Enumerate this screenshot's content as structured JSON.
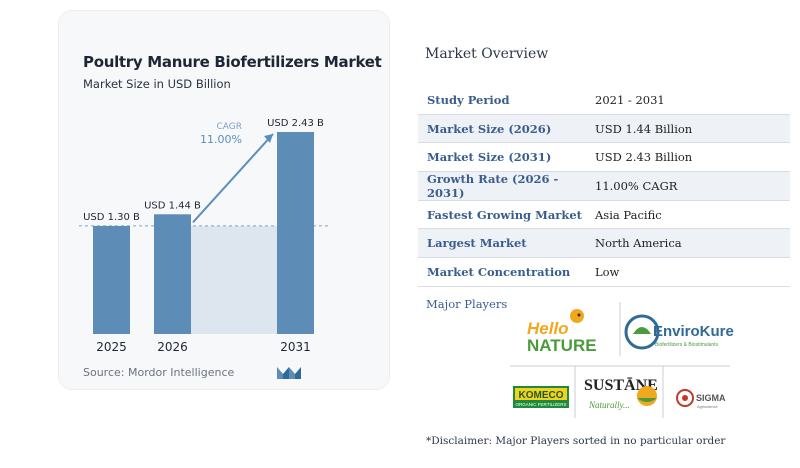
{
  "chart": {
    "title": "Poultry Manure Biofertilizers Market",
    "subtitle": "Market Size in USD Billion",
    "source": "Source: Mordor Intelligence",
    "cagr_label": "CAGR",
    "cagr_value": "11.00%"
  },
  "chart_data": {
    "type": "bar",
    "title": "Poultry Manure Biofertilizers Market",
    "subtitle": "Market Size in USD Billion",
    "categories": [
      "2025",
      "2026",
      "2031"
    ],
    "values": [
      1.3,
      1.44,
      2.43
    ],
    "data_labels": [
      "USD 1.30 B",
      "USD 1.44 B",
      "USD 2.43 B"
    ],
    "ylim": [
      0,
      2.43
    ],
    "grid": false,
    "bar_color": "#5d8db7",
    "annotation": {
      "text": "CAGR 11.00%",
      "from": "2026",
      "to": "2031"
    }
  },
  "overview": {
    "title": "Market Overview",
    "rows": [
      {
        "key": "Study Period",
        "value": "2021 - 2031"
      },
      {
        "key": "Market Size (2026)",
        "value": "USD 1.44 Billion"
      },
      {
        "key": "Market Size (2031)",
        "value": "USD 2.43 Billion"
      },
      {
        "key": "Growth Rate (2026 - 2031)",
        "value": "11.00% CAGR"
      },
      {
        "key": "Fastest Growing Market",
        "value": "Asia Pacific"
      },
      {
        "key": "Largest Market",
        "value": "North America"
      },
      {
        "key": "Market Concentration",
        "value": "Low"
      }
    ]
  },
  "players": {
    "title": "Major Players",
    "logos": [
      "Hello Nature",
      "EnviroKure",
      "KOMECO",
      "Sustane",
      "SIGMA"
    ],
    "disclaimer": "*Disclaimer: Major Players sorted in no particular order"
  },
  "colors": {
    "accent": "#3a5d8f",
    "bar": "#5d8db7",
    "arrow": "#5b8fb9"
  }
}
